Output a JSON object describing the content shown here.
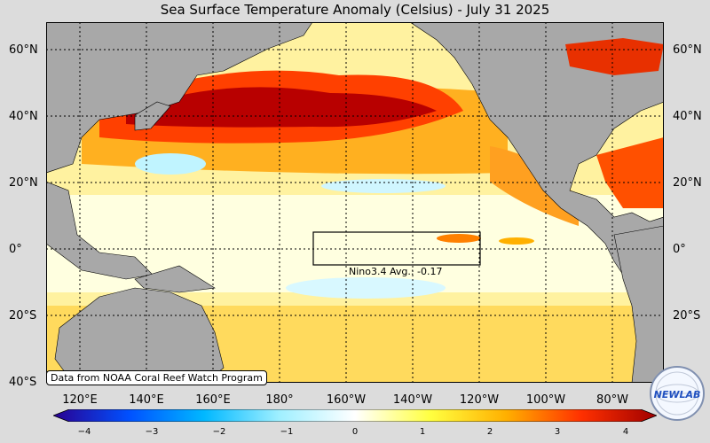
{
  "title": "Sea Surface Temperature Anomaly (Celsius) - July 31 2025",
  "lat_labels": [
    "60°N",
    "40°N",
    "20°N",
    "0°",
    "20°S",
    "40°S"
  ],
  "lon_labels": [
    "120°E",
    "140°E",
    "160°E",
    "180°",
    "160°W",
    "140°W",
    "120°W",
    "100°W",
    "80°W"
  ],
  "colorbar": {
    "ticks": [
      "−4",
      "−3",
      "−2",
      "−1",
      "0",
      "1",
      "2",
      "3",
      "4"
    ],
    "colors": [
      "#2a0090",
      "#0050ff",
      "#00b8ff",
      "#a0f0ff",
      "#ffffff",
      "#ffff40",
      "#ffb000",
      "#ff3000",
      "#a00000"
    ]
  },
  "nino_box": {
    "label": "Nino3.4 Avg.: -0.17"
  },
  "credit": "Data from NOAA Coral Reef Watch Program",
  "logo_text": "NEWLAB",
  "colors": {
    "land": "#a8a8a8",
    "warm_dark": "#b00000",
    "warm": "#ff5000",
    "mild": "#ffd000",
    "neutral": "#ffffd0",
    "cool": "#b0f0ff"
  }
}
